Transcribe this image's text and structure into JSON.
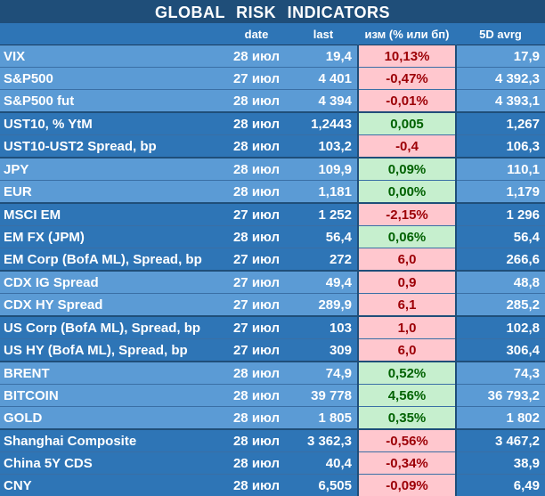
{
  "title": "GLOBAL  RISK  INDICATORS",
  "columns": [
    "",
    "date",
    "last",
    "изм (% или бп)",
    "5D avrg"
  ],
  "groups": [
    {
      "rows": [
        {
          "name": "VIX",
          "date": "28 июл",
          "last": "19,4",
          "change": "10,13%",
          "dir": "neg",
          "avg": "17,9"
        },
        {
          "name": "S&P500",
          "date": "27 июл",
          "last": "4 401",
          "change": "-0,47%",
          "dir": "neg",
          "avg": "4 392,3"
        },
        {
          "name": "S&P500 fut",
          "date": "28 июл",
          "last": "4 394",
          "change": "-0,01%",
          "dir": "neg",
          "avg": "4 393,1"
        }
      ]
    },
    {
      "rows": [
        {
          "name": "UST10, % YtM",
          "date": "28 июл",
          "last": "1,2443",
          "change": "0,005",
          "dir": "pos",
          "avg": "1,267"
        },
        {
          "name": "UST10-UST2 Spread, bp",
          "date": "28 июл",
          "last": "103,2",
          "change": "-0,4",
          "dir": "neg",
          "avg": "106,3"
        }
      ]
    },
    {
      "rows": [
        {
          "name": "JPY",
          "date": "28 июл",
          "last": "109,9",
          "change": "0,09%",
          "dir": "pos",
          "avg": "110,1"
        },
        {
          "name": "EUR",
          "date": "28 июл",
          "last": "1,181",
          "change": "0,00%",
          "dir": "pos",
          "avg": "1,179"
        }
      ]
    },
    {
      "rows": [
        {
          "name": "MSCI EM",
          "date": "27 июл",
          "last": "1 252",
          "change": "-2,15%",
          "dir": "neg",
          "avg": "1 296"
        },
        {
          "name": "EM FX (JPM)",
          "date": "28 июл",
          "last": "56,4",
          "change": "0,06%",
          "dir": "pos",
          "avg": "56,4"
        },
        {
          "name": "EM Corp (BofA ML), Spread, bp",
          "date": "27 июл",
          "last": "272",
          "change": "6,0",
          "dir": "neg",
          "avg": "266,6"
        }
      ]
    },
    {
      "rows": [
        {
          "name": "CDX IG Spread",
          "date": "27 июл",
          "last": "49,4",
          "change": "0,9",
          "dir": "neg",
          "avg": "48,8"
        },
        {
          "name": "CDX HY Spread",
          "date": "27 июл",
          "last": "289,9",
          "change": "6,1",
          "dir": "neg",
          "avg": "285,2"
        }
      ]
    },
    {
      "rows": [
        {
          "name": "US Corp (BofA ML), Spread, bp",
          "date": "27 июл",
          "last": "103",
          "change": "1,0",
          "dir": "neg",
          "avg": "102,8"
        },
        {
          "name": "US HY (BofA ML), Spread, bp",
          "date": "27 июл",
          "last": "309",
          "change": "6,0",
          "dir": "neg",
          "avg": "306,4"
        }
      ]
    },
    {
      "rows": [
        {
          "name": "BRENT",
          "date": "28 июл",
          "last": "74,9",
          "change": "0,52%",
          "dir": "pos",
          "avg": "74,3"
        },
        {
          "name": "BITCOIN",
          "date": "28 июл",
          "last": "39 778",
          "change": "4,56%",
          "dir": "pos",
          "avg": "36 793,2"
        },
        {
          "name": "GOLD",
          "date": "28 июл",
          "last": "1 805",
          "change": "0,35%",
          "dir": "pos",
          "avg": "1 802"
        }
      ]
    },
    {
      "rows": [
        {
          "name": "Shanghai Composite",
          "date": "28 июл",
          "last": "3 362,3",
          "change": "-0,56%",
          "dir": "neg",
          "avg": "3 467,2"
        },
        {
          "name": "China 5Y CDS",
          "date": "28 июл",
          "last": "40,4",
          "change": "-0,34%",
          "dir": "neg",
          "avg": "38,9"
        },
        {
          "name": "CNY",
          "date": "28 июл",
          "last": "6,505",
          "change": "-0,09%",
          "dir": "neg",
          "avg": "6,49"
        }
      ]
    }
  ],
  "colors": {
    "header_bg": "#1f4e79",
    "row_light": "#5b9bd5",
    "row_dark": "#2e75b6",
    "negative_bg": "#ffc7ce",
    "negative_text": "#9c0006",
    "positive_bg": "#c6efce",
    "positive_text": "#006100"
  }
}
